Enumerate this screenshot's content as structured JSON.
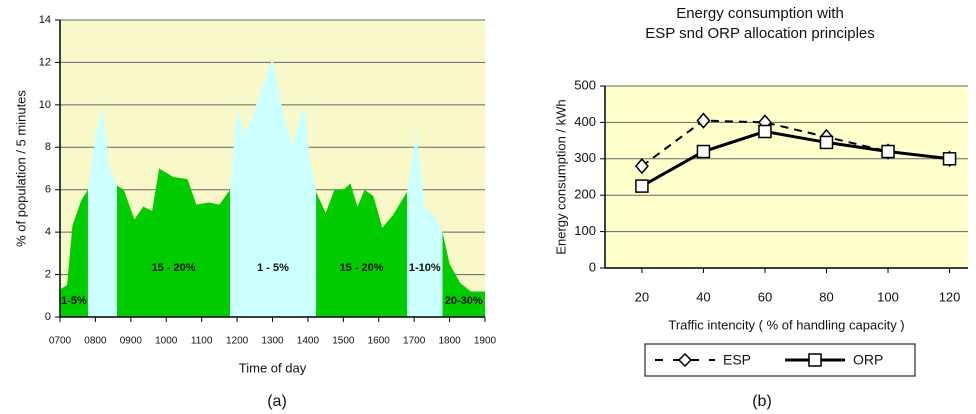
{
  "chart_data": [
    {
      "type": "area",
      "x_label": "Time of day",
      "y_label": "% of population / 5 minutes",
      "caption": "(a)",
      "x": [
        7.0,
        7.2,
        7.35,
        7.6,
        7.79,
        8.0,
        8.19,
        8.4,
        8.61,
        8.8,
        9.1,
        9.35,
        9.6,
        9.8,
        10.2,
        10.6,
        10.85,
        11.2,
        11.5,
        11.8,
        12.0,
        12.2,
        12.4,
        12.7,
        13.0,
        13.3,
        13.55,
        13.9,
        14.05,
        14.23,
        14.5,
        14.75,
        15.0,
        15.2,
        15.4,
        15.6,
        15.85,
        16.1,
        16.4,
        16.8,
        17.06,
        17.3,
        17.55,
        17.8,
        18.0,
        18.3,
        18.6,
        19.0
      ],
      "values": [
        1.3,
        1.5,
        4.3,
        5.5,
        6.0,
        8.5,
        9.9,
        7.0,
        6.2,
        6.0,
        4.6,
        5.2,
        5.0,
        7.0,
        6.6,
        6.5,
        5.3,
        5.4,
        5.3,
        6.0,
        9.9,
        8.6,
        9.3,
        10.8,
        12.2,
        9.6,
        8.1,
        10.0,
        7.5,
        5.9,
        4.9,
        6.0,
        6.0,
        6.3,
        5.2,
        6.0,
        5.7,
        4.2,
        4.8,
        5.9,
        8.7,
        5.2,
        4.8,
        4.0,
        2.5,
        1.6,
        1.2,
        1.2
      ],
      "bands": [
        {
          "from": 7.0,
          "to": 7.79,
          "color": "#00cc00",
          "label": "1-5%"
        },
        {
          "from": 7.79,
          "to": 8.61,
          "color": "#ccffff"
        },
        {
          "from": 8.61,
          "to": 11.8,
          "color": "#00cc00",
          "label": "15 - 20%"
        },
        {
          "from": 11.8,
          "to": 14.23,
          "color": "#ccffff",
          "label": "1 - 5%"
        },
        {
          "from": 14.23,
          "to": 16.8,
          "color": "#00cc00",
          "label": "15 - 20%"
        },
        {
          "from": 16.8,
          "to": 17.8,
          "color": "#ccffff",
          "label": "1-10%"
        },
        {
          "from": 17.8,
          "to": 19.0,
          "color": "#00cc00",
          "label": "20-30%"
        }
      ],
      "xlim": [
        7,
        19
      ],
      "xticks": [
        {
          "value": 7,
          "label": "0700"
        },
        {
          "value": 8,
          "label": "0800"
        },
        {
          "value": 9,
          "label": "0900"
        },
        {
          "value": 10,
          "label": "1000"
        },
        {
          "value": 11,
          "label": "1100"
        },
        {
          "value": 12,
          "label": "1200"
        },
        {
          "value": 13,
          "label": "1300"
        },
        {
          "value": 14,
          "label": "1400"
        },
        {
          "value": 15,
          "label": "1500"
        },
        {
          "value": 16,
          "label": "1600"
        },
        {
          "value": 17,
          "label": "1700"
        },
        {
          "value": 18,
          "label": "1800"
        },
        {
          "value": 19,
          "label": "1900"
        }
      ],
      "ylim": [
        0,
        14
      ],
      "yticks": [
        0,
        2,
        4,
        6,
        8,
        10,
        12,
        14
      ],
      "grid": true,
      "background": "#f8f8c8"
    },
    {
      "type": "line",
      "title": [
        "Energy consumption with",
        "ESP snd ORP allocation principles"
      ],
      "x_label": "Traffic intencity ( % of handling capacity )",
      "y_label": "Energy consumption / kWh",
      "caption": "(b)",
      "x": [
        20,
        40,
        60,
        80,
        100,
        120
      ],
      "series": [
        {
          "name": "ESP",
          "color": "#000000",
          "dashed": true,
          "marker": "diamond",
          "values": [
            280,
            405,
            400,
            360,
            320,
            300
          ]
        },
        {
          "name": "ORP",
          "color": "#000000",
          "dashed": false,
          "marker": "square",
          "values": [
            225,
            320,
            375,
            345,
            320,
            300
          ]
        }
      ],
      "xlim": [
        8,
        126
      ],
      "xticks": [
        20,
        40,
        60,
        80,
        100,
        120
      ],
      "ylim": [
        0,
        500
      ],
      "yticks": [
        0,
        100,
        200,
        300,
        400,
        500
      ],
      "grid": true,
      "background": "#ffffcc",
      "legend": "bottom"
    }
  ]
}
